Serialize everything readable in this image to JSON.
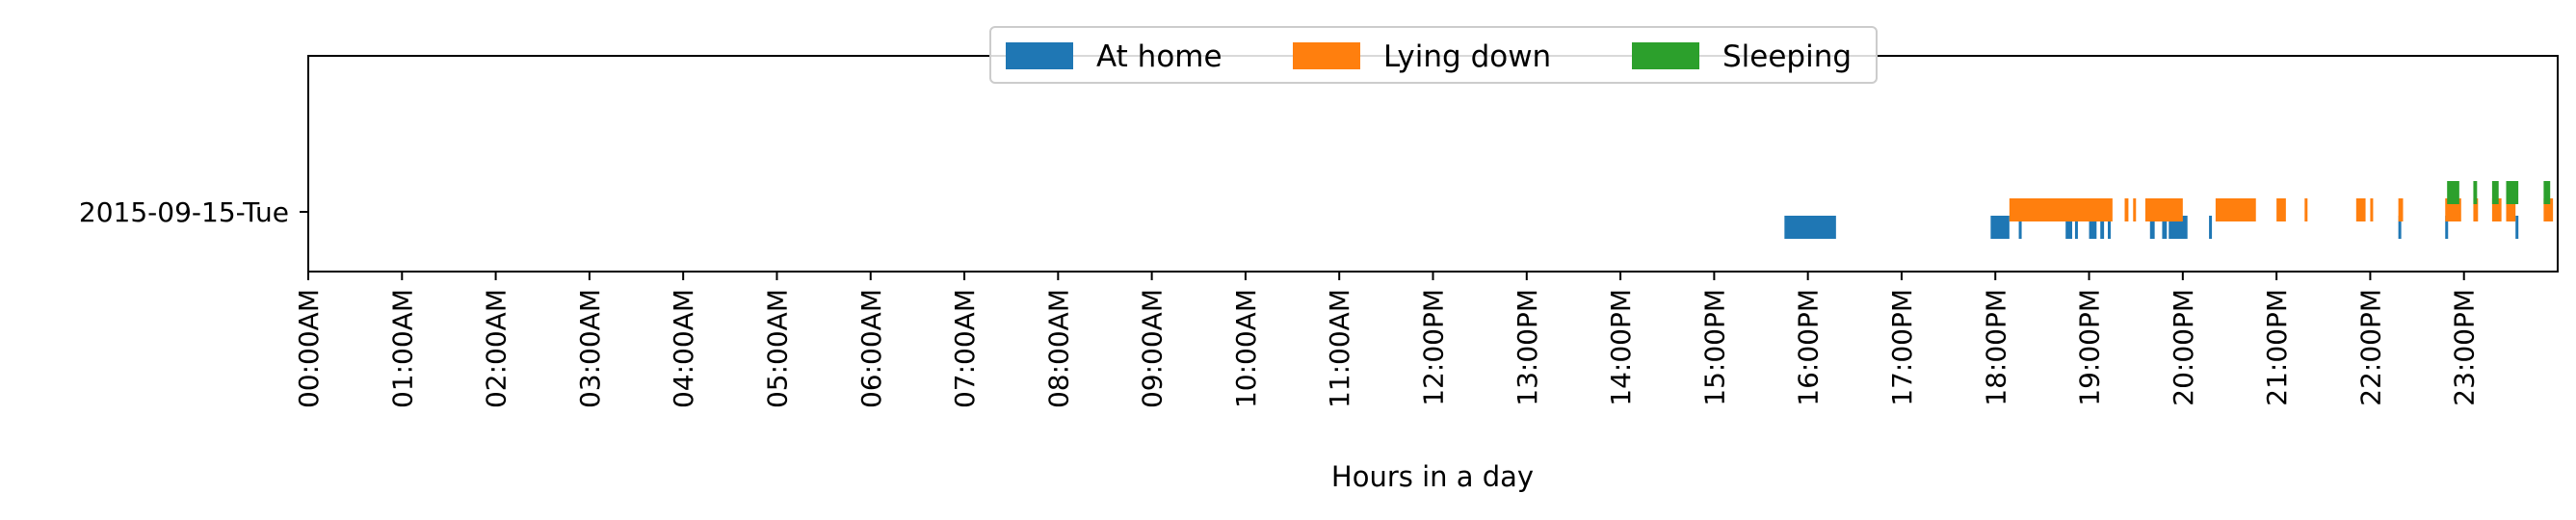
{
  "chart_data": {
    "type": "timeline",
    "title": "",
    "xlabel": "Hours in a day",
    "ylabel": "",
    "xlim": [
      0,
      24
    ],
    "grid": false,
    "legend_placement": "top-center",
    "x_tick_labels": [
      "00:00AM",
      "01:00AM",
      "02:00AM",
      "03:00AM",
      "04:00AM",
      "05:00AM",
      "06:00AM",
      "07:00AM",
      "08:00AM",
      "09:00AM",
      "10:00AM",
      "11:00AM",
      "12:00PM",
      "13:00PM",
      "14:00PM",
      "15:00PM",
      "16:00PM",
      "17:00PM",
      "18:00PM",
      "19:00PM",
      "20:00PM",
      "21:00PM",
      "22:00PM",
      "23:00PM"
    ],
    "y_categories": [
      "2015-09-15-Tue"
    ],
    "series": [
      {
        "name": "At home",
        "color": "#1f77b4",
        "intervals_hours": [
          [
            15.75,
            16.3
          ],
          [
            17.95,
            18.15
          ],
          [
            18.25,
            18.28
          ],
          [
            18.75,
            18.82
          ],
          [
            18.85,
            18.88
          ],
          [
            19.0,
            19.08
          ],
          [
            19.12,
            19.16
          ],
          [
            19.2,
            19.23
          ],
          [
            19.65,
            19.7
          ],
          [
            19.78,
            19.83
          ],
          [
            19.85,
            20.05
          ],
          [
            20.28,
            20.3
          ],
          [
            22.3,
            22.32
          ],
          [
            22.8,
            22.82
          ],
          [
            23.55,
            23.58
          ]
        ]
      },
      {
        "name": "Lying down",
        "color": "#ff7f0e",
        "intervals_hours": [
          [
            18.15,
            19.25
          ],
          [
            19.38,
            19.42
          ],
          [
            19.47,
            19.5
          ],
          [
            19.6,
            20.0
          ],
          [
            20.35,
            20.78
          ],
          [
            21.0,
            21.1
          ],
          [
            21.3,
            21.33
          ],
          [
            21.85,
            21.95
          ],
          [
            22.0,
            22.02
          ],
          [
            22.3,
            22.35
          ],
          [
            22.8,
            22.97
          ],
          [
            23.1,
            23.15
          ],
          [
            23.3,
            23.4
          ],
          [
            23.45,
            23.55
          ],
          [
            23.85,
            23.95
          ]
        ]
      },
      {
        "name": "Sleeping",
        "color": "#2ca02c",
        "intervals_hours": [
          [
            22.82,
            22.95
          ],
          [
            23.1,
            23.14
          ],
          [
            23.3,
            23.37
          ],
          [
            23.45,
            23.58
          ],
          [
            23.85,
            23.92
          ]
        ]
      }
    ]
  }
}
